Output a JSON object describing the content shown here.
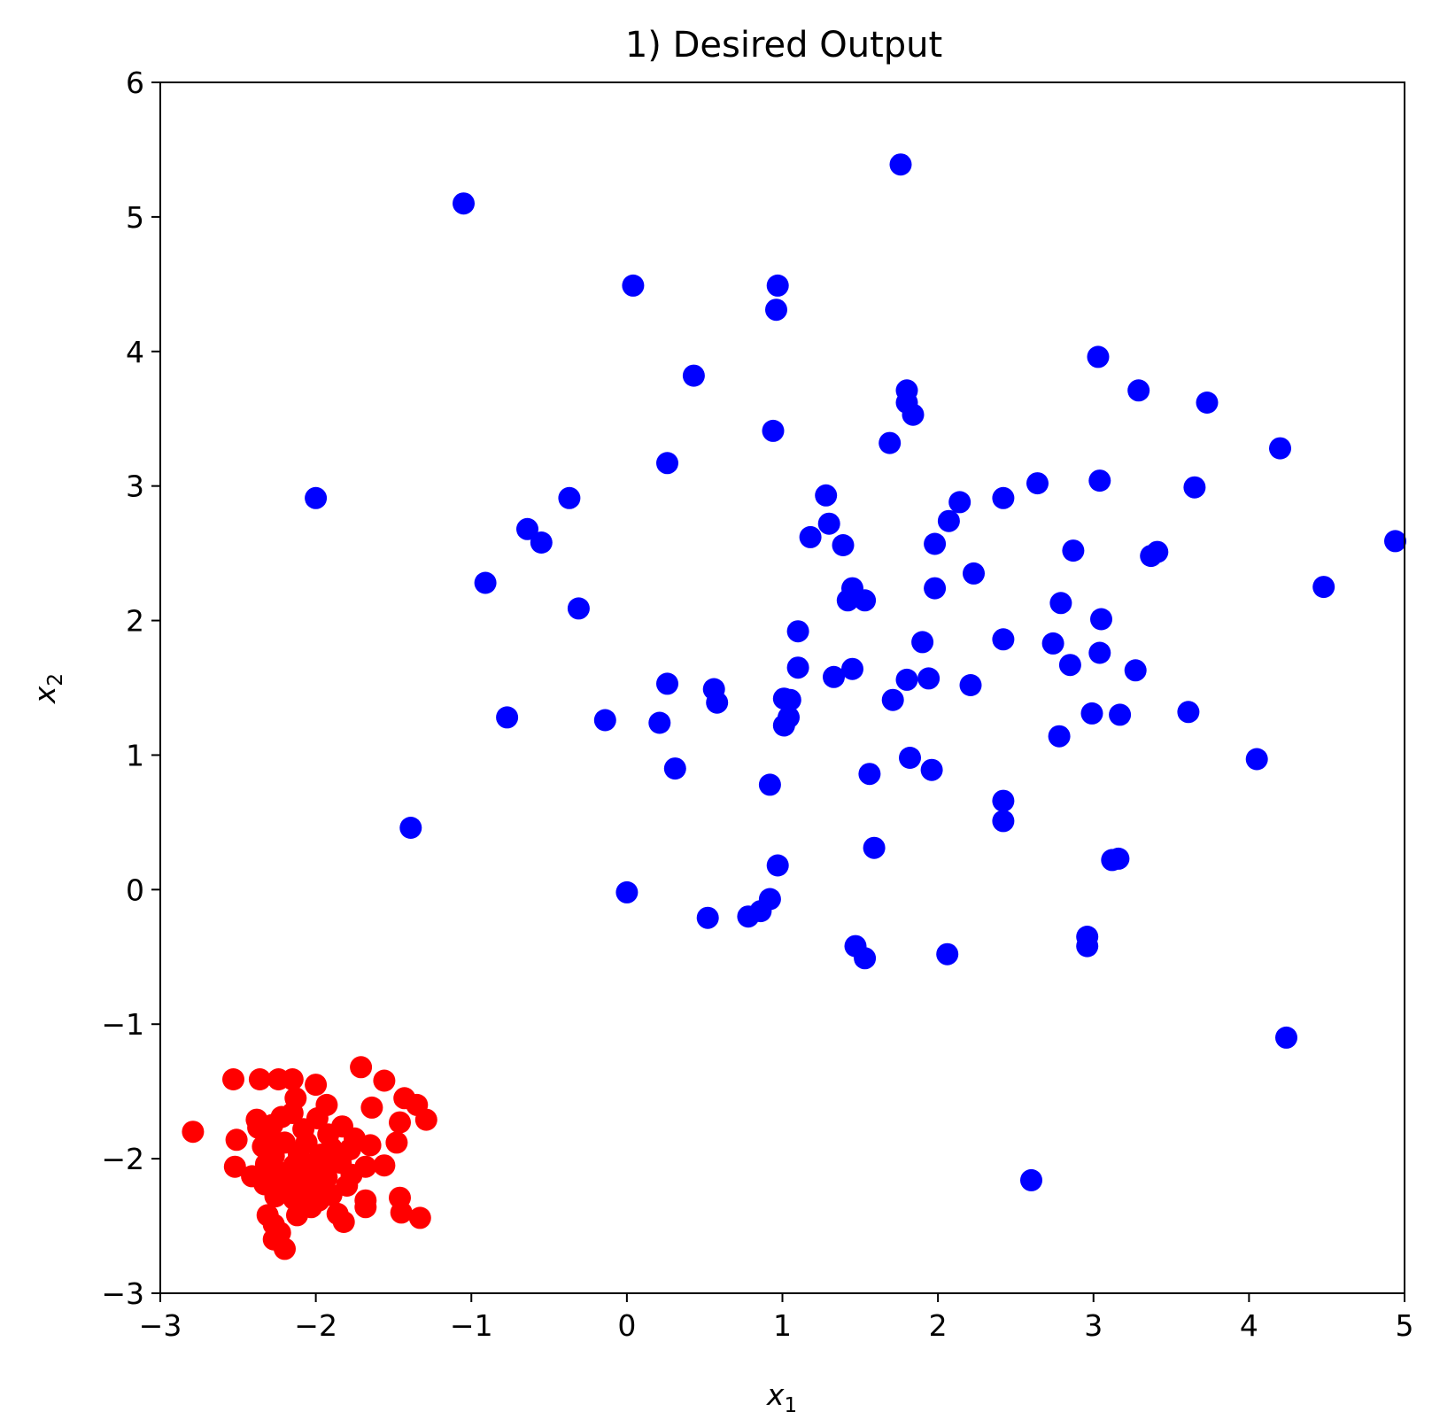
{
  "chart_data": {
    "type": "scatter",
    "title": "1) Desired Output",
    "xlabel": {
      "base": "x",
      "sub": "1"
    },
    "ylabel": {
      "base": "x",
      "sub": "2"
    },
    "xlim": [
      -3,
      5
    ],
    "ylim": [
      -3,
      6
    ],
    "xticks": [
      -3,
      -2,
      -1,
      0,
      1,
      2,
      3,
      4,
      5
    ],
    "yticks": [
      -3,
      -2,
      -1,
      0,
      1,
      2,
      3,
      4,
      5,
      6
    ],
    "xtick_labels": [
      "−3",
      "−2",
      "−1",
      "0",
      "1",
      "2",
      "3",
      "4",
      "5"
    ],
    "ytick_labels": [
      "−3",
      "−2",
      "−1",
      "0",
      "1",
      "2",
      "3",
      "4",
      "5",
      "6"
    ],
    "grid": false,
    "series": [
      {
        "color": "#0000ff",
        "points": [
          [
            -1.05,
            5.1
          ],
          [
            1.76,
            5.39
          ],
          [
            0.04,
            4.49
          ],
          [
            0.97,
            4.49
          ],
          [
            0.96,
            4.31
          ],
          [
            0.43,
            3.82
          ],
          [
            3.03,
            3.96
          ],
          [
            1.8,
            3.71
          ],
          [
            3.29,
            3.71
          ],
          [
            3.73,
            3.62
          ],
          [
            1.8,
            3.62
          ],
          [
            1.84,
            3.53
          ],
          [
            0.94,
            3.41
          ],
          [
            1.69,
            3.32
          ],
          [
            4.2,
            3.28
          ],
          [
            0.26,
            3.17
          ],
          [
            2.64,
            3.02
          ],
          [
            3.04,
            3.04
          ],
          [
            3.65,
            2.99
          ],
          [
            -2.0,
            2.91
          ],
          [
            -0.37,
            2.91
          ],
          [
            1.28,
            2.93
          ],
          [
            2.14,
            2.88
          ],
          [
            2.42,
            2.91
          ],
          [
            1.3,
            2.72
          ],
          [
            2.07,
            2.74
          ],
          [
            -0.64,
            2.68
          ],
          [
            -0.55,
            2.58
          ],
          [
            1.18,
            2.62
          ],
          [
            1.39,
            2.56
          ],
          [
            1.98,
            2.57
          ],
          [
            2.87,
            2.52
          ],
          [
            3.37,
            2.48
          ],
          [
            3.41,
            2.51
          ],
          [
            4.94,
            2.59
          ],
          [
            -0.91,
            2.28
          ],
          [
            2.23,
            2.35
          ],
          [
            1.45,
            2.24
          ],
          [
            1.98,
            2.24
          ],
          [
            4.48,
            2.25
          ],
          [
            -0.31,
            2.09
          ],
          [
            1.42,
            2.15
          ],
          [
            1.53,
            2.15
          ],
          [
            2.79,
            2.13
          ],
          [
            3.05,
            2.01
          ],
          [
            1.1,
            1.92
          ],
          [
            1.9,
            1.84
          ],
          [
            2.42,
            1.86
          ],
          [
            2.74,
            1.83
          ],
          [
            1.1,
            1.65
          ],
          [
            1.45,
            1.64
          ],
          [
            2.85,
            1.67
          ],
          [
            3.04,
            1.76
          ],
          [
            3.27,
            1.63
          ],
          [
            1.33,
            1.58
          ],
          [
            1.8,
            1.56
          ],
          [
            1.94,
            1.57
          ],
          [
            0.26,
            1.53
          ],
          [
            0.56,
            1.49
          ],
          [
            2.21,
            1.52
          ],
          [
            0.58,
            1.39
          ],
          [
            1.01,
            1.42
          ],
          [
            1.05,
            1.41
          ],
          [
            1.71,
            1.41
          ],
          [
            -0.77,
            1.28
          ],
          [
            -0.14,
            1.26
          ],
          [
            0.21,
            1.24
          ],
          [
            1.04,
            1.28
          ],
          [
            1.01,
            1.22
          ],
          [
            2.99,
            1.31
          ],
          [
            3.17,
            1.3
          ],
          [
            3.61,
            1.32
          ],
          [
            2.78,
            1.14
          ],
          [
            4.05,
            0.97
          ],
          [
            0.31,
            0.9
          ],
          [
            1.82,
            0.98
          ],
          [
            1.96,
            0.89
          ],
          [
            1.56,
            0.86
          ],
          [
            0.92,
            0.78
          ],
          [
            2.42,
            0.66
          ],
          [
            2.42,
            0.51
          ],
          [
            -1.39,
            0.46
          ],
          [
            1.59,
            0.31
          ],
          [
            3.12,
            0.22
          ],
          [
            3.16,
            0.23
          ],
          [
            0.97,
            0.18
          ],
          [
            0.0,
            -0.02
          ],
          [
            0.92,
            -0.07
          ],
          [
            0.86,
            -0.16
          ],
          [
            0.78,
            -0.2
          ],
          [
            0.52,
            -0.21
          ],
          [
            2.96,
            -0.35
          ],
          [
            2.96,
            -0.42
          ],
          [
            1.47,
            -0.42
          ],
          [
            1.53,
            -0.51
          ],
          [
            2.06,
            -0.48
          ],
          [
            4.24,
            -1.1
          ],
          [
            2.6,
            -2.16
          ]
        ]
      },
      {
        "color": "#ff0000",
        "points": [
          [
            -2.79,
            -1.8
          ],
          [
            -2.53,
            -1.41
          ],
          [
            -2.36,
            -1.41
          ],
          [
            -2.24,
            -1.41
          ],
          [
            -2.15,
            -1.41
          ],
          [
            -2.0,
            -1.45
          ],
          [
            -1.71,
            -1.32
          ],
          [
            -1.56,
            -1.42
          ],
          [
            -1.43,
            -1.55
          ],
          [
            -1.35,
            -1.6
          ],
          [
            -1.29,
            -1.71
          ],
          [
            -1.46,
            -1.73
          ],
          [
            -1.64,
            -1.62
          ],
          [
            -1.93,
            -1.6
          ],
          [
            -2.13,
            -1.55
          ],
          [
            -2.38,
            -1.71
          ],
          [
            -2.51,
            -1.86
          ],
          [
            -2.52,
            -2.06
          ],
          [
            -2.41,
            -2.13
          ],
          [
            -2.32,
            -2.04
          ],
          [
            -2.3,
            -1.86
          ],
          [
            -2.22,
            -1.69
          ],
          [
            -2.15,
            -1.66
          ],
          [
            -2.08,
            -1.78
          ],
          [
            -1.99,
            -1.7
          ],
          [
            -1.92,
            -1.82
          ],
          [
            -1.83,
            -1.76
          ],
          [
            -1.78,
            -1.93
          ],
          [
            -1.84,
            -2.03
          ],
          [
            -1.95,
            -2.11
          ],
          [
            -2.03,
            -2.05
          ],
          [
            -2.11,
            -1.96
          ],
          [
            -2.2,
            -1.88
          ],
          [
            -2.27,
            -1.98
          ],
          [
            -2.34,
            -1.91
          ],
          [
            -2.24,
            -2.1
          ],
          [
            -2.17,
            -2.18
          ],
          [
            -2.07,
            -2.24
          ],
          [
            -1.98,
            -2.31
          ],
          [
            -1.9,
            -2.27
          ],
          [
            -1.86,
            -2.41
          ],
          [
            -1.82,
            -2.47
          ],
          [
            -1.68,
            -2.36
          ],
          [
            -1.68,
            -2.31
          ],
          [
            -1.77,
            -2.12
          ],
          [
            -1.68,
            -2.06
          ],
          [
            -1.65,
            -1.9
          ],
          [
            -1.56,
            -2.05
          ],
          [
            -1.48,
            -1.88
          ],
          [
            -1.46,
            -2.29
          ],
          [
            -1.45,
            -2.4
          ],
          [
            -1.33,
            -2.44
          ],
          [
            -2.12,
            -2.42
          ],
          [
            -2.03,
            -2.36
          ],
          [
            -2.31,
            -2.42
          ],
          [
            -2.27,
            -2.49
          ],
          [
            -2.23,
            -2.55
          ],
          [
            -2.27,
            -2.6
          ],
          [
            -2.2,
            -2.67
          ],
          [
            -2.26,
            -2.28
          ],
          [
            -2.33,
            -2.19
          ],
          [
            -2.14,
            -2.05
          ],
          [
            -2.06,
            -1.88
          ],
          [
            -1.97,
            -1.97
          ],
          [
            -1.88,
            -2.0
          ],
          [
            -2.0,
            -2.18
          ],
          [
            -2.09,
            -2.15
          ],
          [
            -2.14,
            -2.3
          ],
          [
            -2.24,
            -2.2
          ],
          [
            -1.93,
            -2.14
          ],
          [
            -1.8,
            -2.2
          ],
          [
            -2.37,
            -1.77
          ],
          [
            -2.28,
            -1.75
          ],
          [
            -1.75,
            -1.85
          ],
          [
            -1.9,
            -1.92
          ]
        ]
      }
    ]
  }
}
